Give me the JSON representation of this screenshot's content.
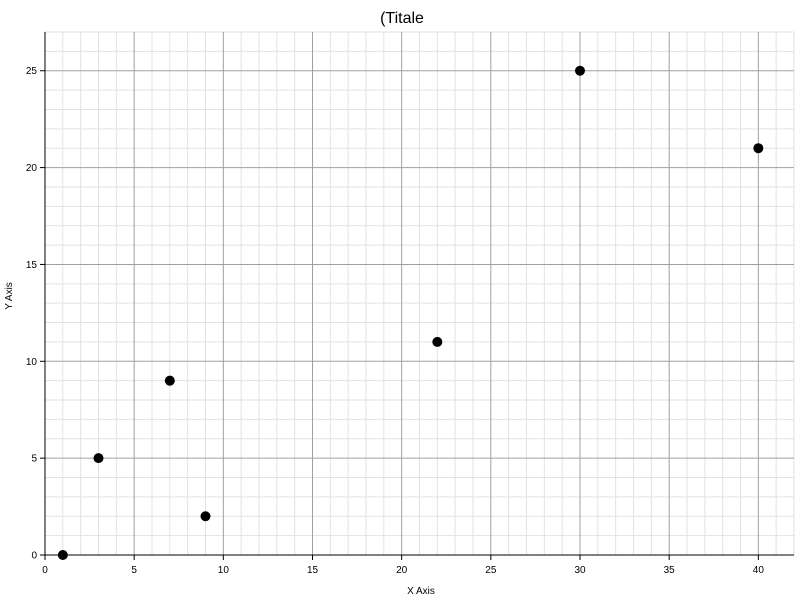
{
  "chart_data": {
    "type": "scatter",
    "title": "(Titale",
    "xlabel": "X Axis",
    "ylabel": "Y Axis",
    "xlim": [
      0,
      42
    ],
    "ylim": [
      0,
      27
    ],
    "x_ticks": [
      0,
      5,
      10,
      15,
      20,
      25,
      30,
      35,
      40
    ],
    "y_ticks": [
      0,
      5,
      10,
      15,
      20,
      25
    ],
    "x_minor_step": 1,
    "y_minor_step": 1,
    "grid": true,
    "marker_color": "#000000",
    "series": [
      {
        "points": [
          {
            "x": 1,
            "y": 0
          },
          {
            "x": 3,
            "y": 5
          },
          {
            "x": 7,
            "y": 9
          },
          {
            "x": 9,
            "y": 2
          },
          {
            "x": 22,
            "y": 11
          },
          {
            "x": 30,
            "y": 25
          },
          {
            "x": 40,
            "y": 21
          }
        ]
      }
    ]
  }
}
